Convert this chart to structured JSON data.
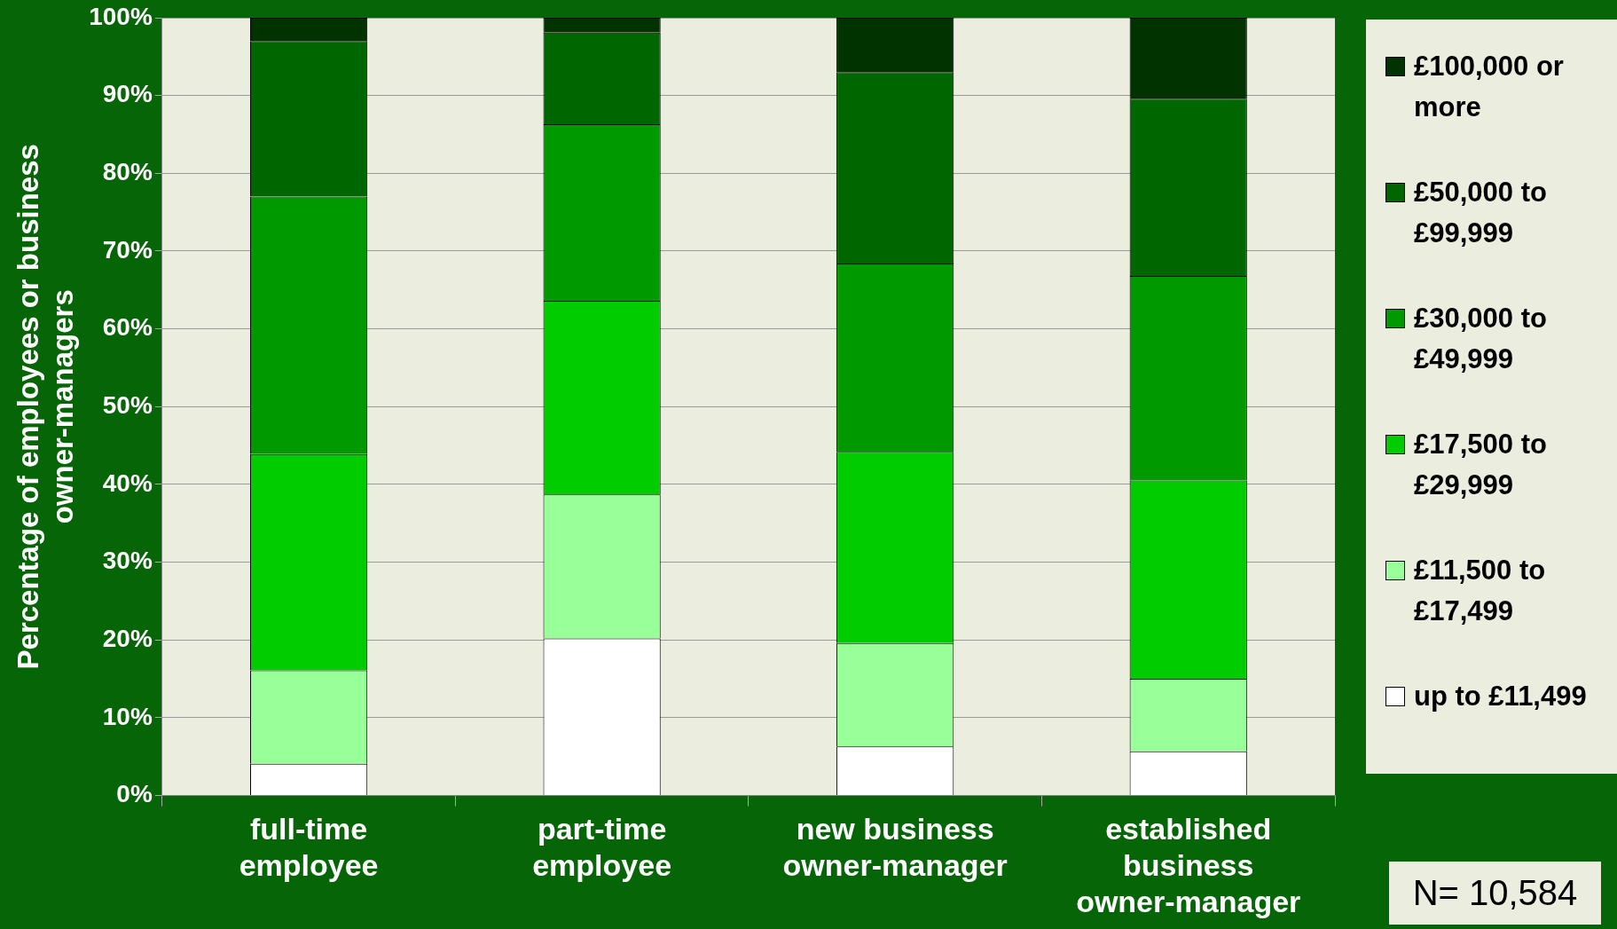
{
  "chart_data": {
    "type": "bar",
    "stacked": true,
    "ylabel": "Percentage of employees or business owner-managers",
    "categories": [
      "full-time employee",
      "part-time employee",
      "new business owner-manager",
      "established business owner-manager"
    ],
    "series": [
      {
        "name": "up to £11,499",
        "color": "#ffffff",
        "values": [
          4.1,
          20.2,
          6.3,
          5.7
        ]
      },
      {
        "name": "£11,500 to £17,499",
        "color": "#99ff99",
        "values": [
          12.0,
          18.5,
          13.3,
          9.3
        ]
      },
      {
        "name": "£17,500 to £29,999",
        "color": "#00cc00",
        "values": [
          27.8,
          24.9,
          24.6,
          25.5
        ]
      },
      {
        "name": "£30,000 to £49,999",
        "color": "#009900",
        "values": [
          33.1,
          22.7,
          24.2,
          26.3
        ]
      },
      {
        "name": "£50,000 to £99,999",
        "color": "#006600",
        "values": [
          20.0,
          11.8,
          24.6,
          22.8
        ]
      },
      {
        "name": "£100,000 or more",
        "color": "#003300",
        "values": [
          3.0,
          1.9,
          7.0,
          10.4
        ]
      }
    ],
    "ylim": [
      0,
      100
    ],
    "yticks": [
      {
        "value": 0,
        "label": "0%"
      },
      {
        "value": 10,
        "label": "10%"
      },
      {
        "value": 20,
        "label": "20%"
      },
      {
        "value": 30,
        "label": "30%"
      },
      {
        "value": 40,
        "label": "40%"
      },
      {
        "value": 50,
        "label": "50%"
      },
      {
        "value": 60,
        "label": "60%"
      },
      {
        "value": 70,
        "label": "70%"
      },
      {
        "value": 80,
        "label": "80%"
      },
      {
        "value": 90,
        "label": "90%"
      },
      {
        "value": 100,
        "label": "100%"
      }
    ],
    "grid": "y",
    "legend": "right",
    "annotations": [
      "N= 10,584"
    ]
  }
}
